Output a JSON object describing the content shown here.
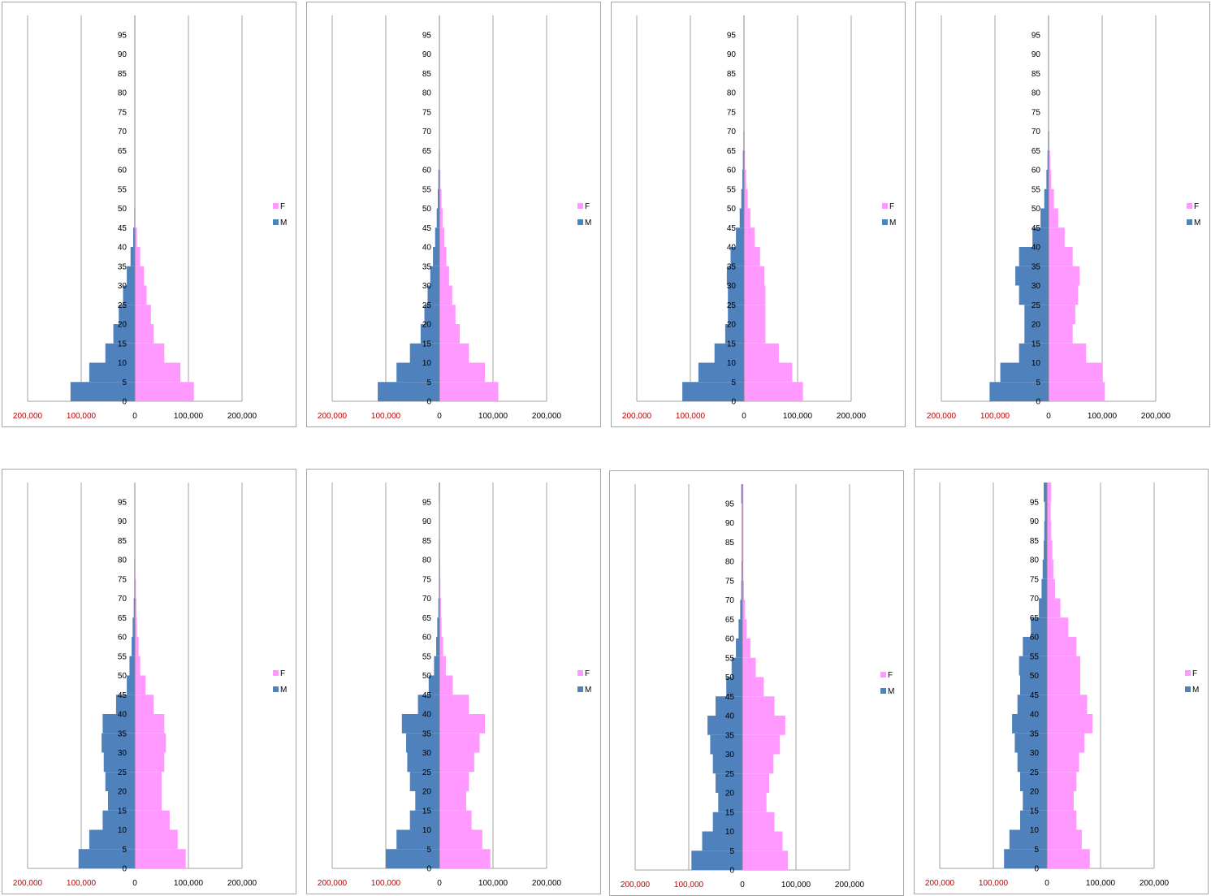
{
  "colors": {
    "M": "#4f81bd",
    "F": "#ff99ff",
    "negative_tick": "#c00000",
    "grid": "#a0a0a0"
  },
  "chart_data": [
    {
      "type": "bar",
      "orientation": "horizontal-pyramid",
      "age_groups_start": [
        0,
        5,
        10,
        15,
        20,
        25,
        30,
        35,
        40,
        45,
        50,
        55,
        60,
        65,
        70,
        75,
        80,
        85,
        90,
        95
      ],
      "series": [
        {
          "name": "F",
          "values": [
            110000,
            85000,
            55000,
            35000,
            30000,
            22000,
            17000,
            10000,
            4000,
            1000,
            500,
            0,
            0,
            0,
            0,
            0,
            0,
            0,
            0,
            0
          ]
        },
        {
          "name": "M",
          "values": [
            120000,
            85000,
            55000,
            40000,
            30000,
            22000,
            15000,
            8000,
            3000,
            1000,
            500,
            0,
            0,
            0,
            0,
            0,
            0,
            0,
            0,
            0
          ]
        }
      ],
      "x_tick_labels": [
        "200,000",
        "100,000",
        "0",
        "100,000",
        "200,000"
      ],
      "y_tick_labels": [
        "0",
        "5",
        "10",
        "15",
        "20",
        "25",
        "30",
        "35",
        "40",
        "45",
        "50",
        "55",
        "60",
        "65",
        "70",
        "75",
        "80",
        "85",
        "90",
        "95"
      ],
      "xlim": [
        -200000,
        200000
      ],
      "ylim": [
        0,
        100
      ],
      "legend": "right"
    },
    {
      "type": "bar",
      "orientation": "horizontal-pyramid",
      "age_groups_start": [
        0,
        5,
        10,
        15,
        20,
        25,
        30,
        35,
        40,
        45,
        50,
        55,
        60,
        65,
        70,
        75,
        80,
        85,
        90,
        95
      ],
      "series": [
        {
          "name": "F",
          "values": [
            110000,
            85000,
            55000,
            38000,
            30000,
            24000,
            18000,
            13000,
            9000,
            6000,
            4000,
            2000,
            1000,
            500,
            300,
            0,
            0,
            0,
            0,
            0
          ]
        },
        {
          "name": "M",
          "values": [
            115000,
            80000,
            55000,
            35000,
            28000,
            22000,
            17000,
            12000,
            8000,
            5000,
            3000,
            2000,
            1000,
            500,
            300,
            0,
            0,
            0,
            0,
            0
          ]
        }
      ],
      "x_tick_labels": [
        "200,000",
        "100,000",
        "0",
        "100,000",
        "200,000"
      ],
      "y_tick_labels": [
        "0",
        "5",
        "10",
        "15",
        "20",
        "25",
        "30",
        "35",
        "40",
        "45",
        "50",
        "55",
        "60",
        "65",
        "70",
        "75",
        "80",
        "85",
        "90",
        "95"
      ],
      "xlim": [
        -200000,
        200000
      ],
      "ylim": [
        0,
        100
      ],
      "legend": "right"
    },
    {
      "type": "bar",
      "orientation": "horizontal-pyramid",
      "age_groups_start": [
        0,
        5,
        10,
        15,
        20,
        25,
        30,
        35,
        40,
        45,
        50,
        55,
        60,
        65,
        70,
        75,
        80,
        85,
        90,
        95
      ],
      "series": [
        {
          "name": "F",
          "values": [
            110000,
            90000,
            65000,
            40000,
            40000,
            40000,
            38000,
            30000,
            20000,
            12000,
            7000,
            4000,
            2000,
            1000,
            500,
            0,
            0,
            0,
            0,
            0
          ]
        },
        {
          "name": "M",
          "values": [
            115000,
            85000,
            55000,
            35000,
            30000,
            30000,
            32000,
            25000,
            15000,
            8000,
            5000,
            3000,
            2000,
            1000,
            500,
            0,
            0,
            0,
            0,
            0
          ]
        }
      ],
      "x_tick_labels": [
        "200,000",
        "100,000",
        "0",
        "100,000",
        "200,000"
      ],
      "y_tick_labels": [
        "0",
        "5",
        "10",
        "15",
        "20",
        "25",
        "30",
        "35",
        "40",
        "45",
        "50",
        "55",
        "60",
        "65",
        "70",
        "75",
        "80",
        "85",
        "90",
        "95"
      ],
      "xlim": [
        -200000,
        200000
      ],
      "ylim": [
        0,
        100
      ],
      "legend": "right"
    },
    {
      "type": "bar",
      "orientation": "horizontal-pyramid",
      "age_groups_start": [
        0,
        5,
        10,
        15,
        20,
        25,
        30,
        35,
        40,
        45,
        50,
        55,
        60,
        65,
        70,
        75,
        80,
        85,
        90,
        95
      ],
      "series": [
        {
          "name": "F",
          "values": [
            105000,
            100000,
            70000,
            45000,
            50000,
            55000,
            58000,
            45000,
            30000,
            18000,
            10000,
            5000,
            3000,
            1500,
            500,
            0,
            0,
            0,
            0,
            0
          ]
        },
        {
          "name": "M",
          "values": [
            110000,
            90000,
            55000,
            45000,
            45000,
            55000,
            62000,
            55000,
            30000,
            15000,
            8000,
            4000,
            2000,
            1000,
            500,
            0,
            0,
            0,
            0,
            0
          ]
        }
      ],
      "x_tick_labels": [
        "200,000",
        "100,000",
        "0",
        "100,000",
        "200,000"
      ],
      "y_tick_labels": [
        "0",
        "5",
        "10",
        "15",
        "20",
        "25",
        "30",
        "35",
        "40",
        "45",
        "50",
        "55",
        "60",
        "65",
        "70",
        "75",
        "80",
        "85",
        "90",
        "95"
      ],
      "xlim": [
        -200000,
        200000
      ],
      "ylim": [
        0,
        100
      ],
      "legend": "right"
    },
    {
      "type": "bar",
      "orientation": "horizontal-pyramid",
      "age_groups_start": [
        0,
        5,
        10,
        15,
        20,
        25,
        30,
        35,
        40,
        45,
        50,
        55,
        60,
        65,
        70,
        75,
        80,
        85,
        90,
        95
      ],
      "series": [
        {
          "name": "F",
          "values": [
            95000,
            80000,
            65000,
            50000,
            50000,
            55000,
            58000,
            55000,
            35000,
            20000,
            10000,
            7000,
            4000,
            3000,
            2000,
            1000,
            1000,
            500,
            500,
            500
          ]
        },
        {
          "name": "M",
          "values": [
            105000,
            85000,
            60000,
            50000,
            55000,
            58000,
            62000,
            60000,
            35000,
            15000,
            10000,
            6000,
            4000,
            2000,
            1000,
            1000,
            500,
            500,
            500,
            500
          ]
        }
      ],
      "x_tick_labels": [
        "200,000",
        "100,000",
        "0",
        "100,000",
        "200,000"
      ],
      "y_tick_labels": [
        "0",
        "5",
        "10",
        "15",
        "20",
        "25",
        "30",
        "35",
        "40",
        "45",
        "50",
        "55",
        "60",
        "65",
        "70",
        "75",
        "80",
        "85",
        "90",
        "95"
      ],
      "xlim": [
        -200000,
        200000
      ],
      "ylim": [
        0,
        100
      ],
      "legend": "right"
    },
    {
      "type": "bar",
      "orientation": "horizontal-pyramid",
      "age_groups_start": [
        0,
        5,
        10,
        15,
        20,
        25,
        30,
        35,
        40,
        45,
        50,
        55,
        60,
        65,
        70,
        75,
        80,
        85,
        90,
        95
      ],
      "series": [
        {
          "name": "F",
          "values": [
            95000,
            80000,
            60000,
            50000,
            55000,
            65000,
            75000,
            85000,
            55000,
            25000,
            12000,
            7000,
            4000,
            3000,
            2000,
            1500,
            1000,
            1000,
            1000,
            1000
          ]
        },
        {
          "name": "M",
          "values": [
            100000,
            80000,
            55000,
            45000,
            55000,
            60000,
            62000,
            70000,
            40000,
            20000,
            10000,
            6000,
            4000,
            2000,
            1000,
            1000,
            1000,
            500,
            500,
            1000
          ]
        }
      ],
      "x_tick_labels": [
        "200,000",
        "100,000",
        "0",
        "100,000",
        "200,000"
      ],
      "y_tick_labels": [
        "0",
        "5",
        "10",
        "15",
        "20",
        "25",
        "30",
        "35",
        "40",
        "45",
        "50",
        "55",
        "60",
        "65",
        "70",
        "75",
        "80",
        "85",
        "90",
        "95"
      ],
      "xlim": [
        -200000,
        200000
      ],
      "ylim": [
        0,
        100
      ],
      "legend": "right"
    },
    {
      "type": "bar",
      "orientation": "horizontal-pyramid",
      "age_groups_start": [
        0,
        5,
        10,
        15,
        20,
        25,
        30,
        35,
        40,
        45,
        50,
        55,
        60,
        65,
        70,
        75,
        80,
        85,
        90,
        95
      ],
      "series": [
        {
          "name": "F",
          "values": [
            85000,
            75000,
            60000,
            45000,
            50000,
            58000,
            70000,
            80000,
            60000,
            40000,
            25000,
            15000,
            8000,
            5000,
            3000,
            2000,
            2000,
            2000,
            2000,
            2000
          ]
        },
        {
          "name": "M",
          "values": [
            95000,
            75000,
            55000,
            45000,
            50000,
            55000,
            60000,
            65000,
            50000,
            30000,
            20000,
            12000,
            7000,
            4000,
            2000,
            1500,
            1000,
            1000,
            1000,
            2000
          ]
        }
      ],
      "x_tick_labels": [
        "200,000",
        "100,000",
        "0",
        "100,000",
        "200,000"
      ],
      "y_tick_labels": [
        "0",
        "5",
        "10",
        "15",
        "20",
        "25",
        "30",
        "35",
        "40",
        "45",
        "50",
        "55",
        "60",
        "65",
        "70",
        "75",
        "80",
        "85",
        "90",
        "95"
      ],
      "xlim": [
        -200000,
        200000
      ],
      "ylim": [
        0,
        100
      ],
      "legend": "right"
    },
    {
      "type": "bar",
      "orientation": "horizontal-pyramid",
      "age_groups_start": [
        0,
        5,
        10,
        15,
        20,
        25,
        30,
        35,
        40,
        45,
        50,
        55,
        60,
        65,
        70,
        75,
        80,
        85,
        90,
        95
      ],
      "series": [
        {
          "name": "F",
          "values": [
            80000,
            65000,
            55000,
            50000,
            55000,
            60000,
            70000,
            85000,
            75000,
            62000,
            62000,
            55000,
            40000,
            25000,
            15000,
            12000,
            10000,
            8000,
            7000,
            8000
          ]
        },
        {
          "name": "M",
          "values": [
            80000,
            70000,
            50000,
            45000,
            50000,
            55000,
            60000,
            65000,
            55000,
            50000,
            52000,
            45000,
            30000,
            15000,
            10000,
            8000,
            6000,
            5000,
            4000,
            6000
          ]
        }
      ],
      "x_tick_labels": [
        "200,000",
        "100,000",
        "0",
        "100,000",
        "200,000"
      ],
      "y_tick_labels": [
        "0",
        "5",
        "10",
        "15",
        "20",
        "25",
        "30",
        "35",
        "40",
        "45",
        "50",
        "55",
        "60",
        "65",
        "70",
        "75",
        "80",
        "85",
        "90",
        "95"
      ],
      "xlim": [
        -200000,
        200000
      ],
      "ylim": [
        0,
        100
      ],
      "legend": "right"
    }
  ]
}
